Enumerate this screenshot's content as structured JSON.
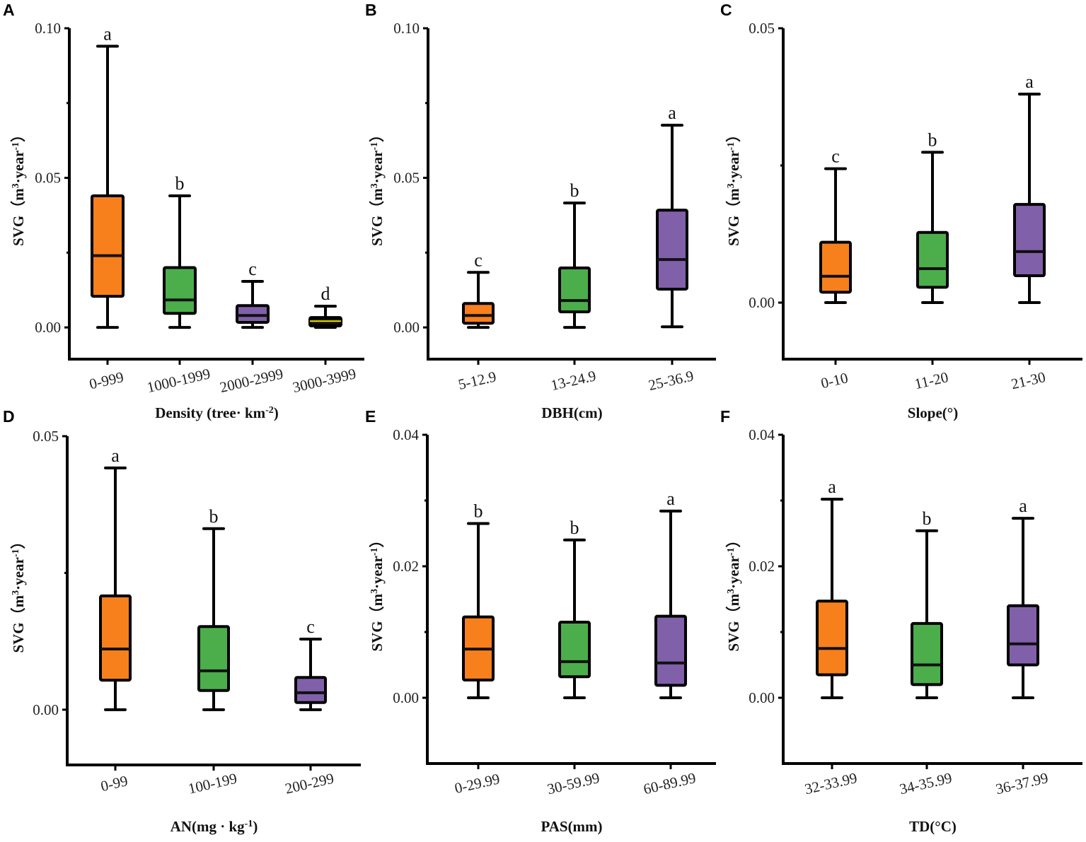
{
  "colors": {
    "orange": "#f7801c",
    "green": "#4bae4b",
    "purple": "#8160aa",
    "black": "#111111",
    "yellow": "#f2e600"
  },
  "chart_data": [
    {
      "panel": "A",
      "type": "box",
      "ylabel": [
        {
          "t": "SVG（m"
        },
        {
          "t": "3",
          "sup": true
        },
        {
          "t": "·year"
        },
        {
          "t": "-1",
          "sup": true
        },
        {
          "t": "）"
        }
      ],
      "xlabel": [
        {
          "t": "Density (tree· km"
        },
        {
          "t": "-2",
          "sup": true
        },
        {
          "t": ")"
        }
      ],
      "ylim": [
        -0.0106,
        0.1
      ],
      "yticks": [
        "0.00",
        "0.05",
        "0.10"
      ],
      "minor_ticks": [
        0.025,
        0.075
      ],
      "categories": [
        "0-999",
        "1000-1999",
        "2000-2999",
        "3000-3999"
      ],
      "fills": [
        "orange",
        "green",
        "purple",
        "black"
      ],
      "median_colors": [
        "black",
        "black",
        "black",
        "yellow"
      ],
      "boxes": [
        {
          "min": 0,
          "q1": 0.0104,
          "median": 0.024,
          "q3": 0.044,
          "max": 0.094,
          "letter": "a"
        },
        {
          "min": 0,
          "q1": 0.0047,
          "median": 0.0092,
          "q3": 0.02,
          "max": 0.044,
          "letter": "b"
        },
        {
          "min": 0,
          "q1": 0.0017,
          "median": 0.004,
          "q3": 0.0073,
          "max": 0.0154,
          "letter": "c"
        },
        {
          "min": 0,
          "q1": 0.0005,
          "median": 0.0021,
          "q3": 0.0033,
          "max": 0.0071,
          "letter": "d"
        }
      ]
    },
    {
      "panel": "B",
      "type": "box",
      "ylabel": [
        {
          "t": "SVG（m"
        },
        {
          "t": "3",
          "sup": true
        },
        {
          "t": "·year"
        },
        {
          "t": "-1",
          "sup": true
        },
        {
          "t": "）"
        }
      ],
      "xlabel": [
        {
          "t": "DBH(cm)"
        }
      ],
      "ylim": [
        -0.0106,
        0.1
      ],
      "yticks": [
        "0.00",
        "0.05",
        "0.10"
      ],
      "minor_ticks": [
        0.025,
        0.075
      ],
      "categories": [
        "5-12.9",
        "13-24.9",
        "25-36.9"
      ],
      "fills": [
        "orange",
        "green",
        "purple"
      ],
      "median_colors": [
        "black",
        "black",
        "black"
      ],
      "boxes": [
        {
          "min": 0,
          "q1": 0.0014,
          "median": 0.004,
          "q3": 0.008,
          "max": 0.0184,
          "letter": "c"
        },
        {
          "min": 0,
          "q1": 0.0052,
          "median": 0.009,
          "q3": 0.0199,
          "max": 0.0416,
          "letter": "b"
        },
        {
          "min": 0.0002,
          "q1": 0.0128,
          "median": 0.0227,
          "q3": 0.0392,
          "max": 0.0676,
          "letter": "a"
        }
      ]
    },
    {
      "panel": "C",
      "type": "box",
      "ylabel": [
        {
          "t": "SVG（m"
        },
        {
          "t": "3",
          "sup": true
        },
        {
          "t": "·year"
        },
        {
          "t": "-1",
          "sup": true
        },
        {
          "t": "）"
        }
      ],
      "xlabel": [
        {
          "t": "Slope(°)"
        }
      ],
      "ylim": [
        -0.0103,
        0.05
      ],
      "yticks": [
        "0.00",
        "0.05"
      ],
      "minor_ticks": [
        0.025
      ],
      "categories": [
        "0-10",
        "11-20",
        "21-30"
      ],
      "fills": [
        "orange",
        "green",
        "purple"
      ],
      "median_colors": [
        "black",
        "black",
        "black"
      ],
      "boxes": [
        {
          "min": 0,
          "q1": 0.0019,
          "median": 0.0048,
          "q3": 0.011,
          "max": 0.0244,
          "letter": "c"
        },
        {
          "min": 0,
          "q1": 0.0028,
          "median": 0.0062,
          "q3": 0.0128,
          "max": 0.0274,
          "letter": "b"
        },
        {
          "min": 0,
          "q1": 0.0049,
          "median": 0.0093,
          "q3": 0.0179,
          "max": 0.038,
          "letter": "a"
        }
      ]
    },
    {
      "panel": "D",
      "type": "box",
      "ylabel": [
        {
          "t": "SVG（m"
        },
        {
          "t": "3",
          "sup": true
        },
        {
          "t": "·year"
        },
        {
          "t": "-1",
          "sup": true
        },
        {
          "t": "）"
        }
      ],
      "xlabel": [
        {
          "t": "AN(mg · kg"
        },
        {
          "t": "-1",
          "sup": true
        },
        {
          "t": ")"
        }
      ],
      "ylim": [
        -0.0101,
        0.05
      ],
      "yticks": [
        "0.00",
        "0.05"
      ],
      "minor_ticks": [
        0.025
      ],
      "categories": [
        "0-99",
        "100-199",
        "200-299"
      ],
      "fills": [
        "orange",
        "green",
        "purple"
      ],
      "median_colors": [
        "black",
        "black",
        "black"
      ],
      "boxes": [
        {
          "min": 0,
          "q1": 0.0054,
          "median": 0.0111,
          "q3": 0.0208,
          "max": 0.0442,
          "letter": "a"
        },
        {
          "min": 0,
          "q1": 0.0035,
          "median": 0.0071,
          "q3": 0.0152,
          "max": 0.0331,
          "letter": "b"
        },
        {
          "min": 0,
          "q1": 0.0013,
          "median": 0.0031,
          "q3": 0.0059,
          "max": 0.0129,
          "letter": "c"
        }
      ]
    },
    {
      "panel": "E",
      "type": "box",
      "ylabel": [
        {
          "t": "SVG（m"
        },
        {
          "t": "3",
          "sup": true
        },
        {
          "t": "·year"
        },
        {
          "t": "-1",
          "sup": true
        },
        {
          "t": "）"
        }
      ],
      "xlabel": [
        {
          "t": "PAS(mm)"
        }
      ],
      "ylim": [
        -0.01,
        0.04
      ],
      "yticks": [
        "0.00",
        "0.02",
        "0.04"
      ],
      "minor_ticks": [
        0.01,
        0.03
      ],
      "categories": [
        "0-29.99",
        "30-59.99",
        "60-89.99"
      ],
      "fills": [
        "orange",
        "green",
        "purple"
      ],
      "median_colors": [
        "black",
        "black",
        "black"
      ],
      "boxes": [
        {
          "min": 0,
          "q1": 0.0027,
          "median": 0.0074,
          "q3": 0.0123,
          "max": 0.0265,
          "letter": "b"
        },
        {
          "min": 0,
          "q1": 0.0032,
          "median": 0.0055,
          "q3": 0.0115,
          "max": 0.024,
          "letter": "b"
        },
        {
          "min": 0,
          "q1": 0.0019,
          "median": 0.0053,
          "q3": 0.0124,
          "max": 0.0284,
          "letter": "a"
        }
      ]
    },
    {
      "panel": "F",
      "type": "box",
      "ylabel": [
        {
          "t": "SVG（m"
        },
        {
          "t": "3",
          "sup": true
        },
        {
          "t": "·year"
        },
        {
          "t": "-1",
          "sup": true
        },
        {
          "t": "）"
        }
      ],
      "xlabel": [
        {
          "t": "TD(°C)"
        }
      ],
      "ylim": [
        -0.01,
        0.04
      ],
      "yticks": [
        "0.00",
        "0.02",
        "0.04"
      ],
      "minor_ticks": [
        0.01,
        0.03
      ],
      "categories": [
        "32-33.99",
        "34-35.99",
        "36-37.99"
      ],
      "fills": [
        "orange",
        "green",
        "purple"
      ],
      "median_colors": [
        "black",
        "black",
        "black"
      ],
      "boxes": [
        {
          "min": 0,
          "q1": 0.0035,
          "median": 0.0075,
          "q3": 0.0147,
          "max": 0.0302,
          "letter": "a"
        },
        {
          "min": 0,
          "q1": 0.002,
          "median": 0.005,
          "q3": 0.0113,
          "max": 0.0254,
          "letter": "b"
        },
        {
          "min": 0,
          "q1": 0.005,
          "median": 0.0082,
          "q3": 0.014,
          "max": 0.0273,
          "letter": "a"
        }
      ]
    }
  ]
}
